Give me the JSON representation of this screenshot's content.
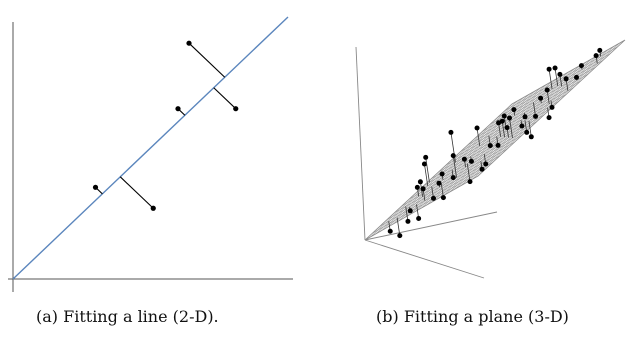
{
  "captions": {
    "a": "(a) Fitting a line (2-D).",
    "b": "(b) Fitting a plane (3-D)"
  },
  "colors": {
    "fit_line": "#5b86bd",
    "axes": "#555555",
    "points": "#000000",
    "plane_mesh": "#8a8a8a",
    "plane_fill": "#e6e6e6"
  },
  "panel_a": {
    "fit_line": {
      "slope": 1,
      "intercept": 0
    },
    "points": [
      {
        "x": 0.3,
        "y": 0.35
      },
      {
        "x": 0.51,
        "y": 0.27
      },
      {
        "x": 0.6,
        "y": 0.65
      },
      {
        "x": 0.81,
        "y": 0.65
      },
      {
        "x": 0.64,
        "y": 0.9
      }
    ]
  },
  "panel_b": {
    "plane": {
      "z_of_x_y": "plane through the origin"
    },
    "points_count": 48
  }
}
